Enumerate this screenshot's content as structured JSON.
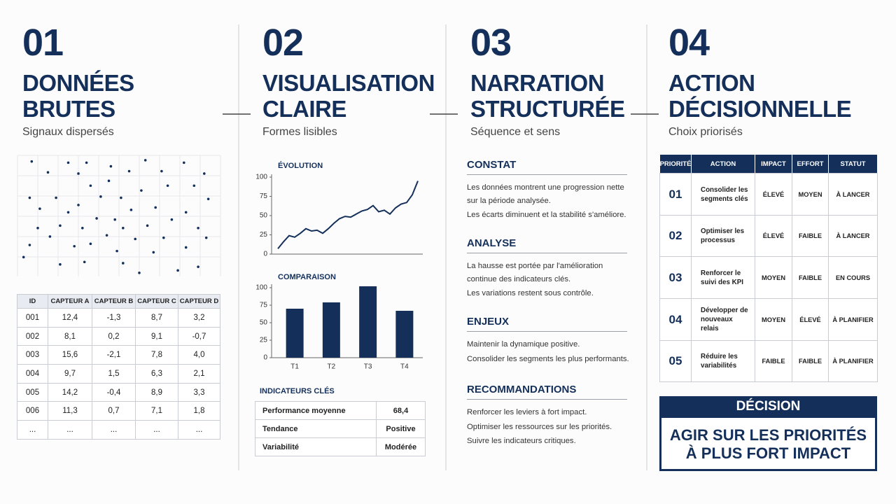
{
  "columns": [
    {
      "number": "01",
      "title": [
        "DONNÉES",
        "BRUTES"
      ],
      "subtitle": "Signaux dispersés"
    },
    {
      "number": "02",
      "title": [
        "VISUALISATION",
        "CLAIRE"
      ],
      "subtitle": "Formes lisibles"
    },
    {
      "number": "03",
      "title": [
        "NARRATION",
        "STRUCTURÉE"
      ],
      "subtitle": "Séquence et sens"
    },
    {
      "number": "04",
      "title": [
        "ACTION",
        "DÉCISIONNELLE"
      ],
      "subtitle": "Choix priorisés"
    }
  ],
  "chart_data": [
    {
      "type": "scatter",
      "color": "#14305a",
      "xlim": [
        0,
        100
      ],
      "ylim": [
        0,
        100
      ],
      "x": [
        7,
        25,
        34,
        46,
        63,
        82,
        15,
        30,
        55,
        71,
        92,
        45,
        36,
        74,
        87,
        61,
        6,
        19,
        41,
        51,
        94,
        30,
        11,
        68,
        56,
        83,
        25,
        39,
        48,
        76,
        10,
        21,
        32,
        52,
        64,
        89,
        16,
        44,
        58,
        72,
        93,
        6,
        28,
        36,
        83,
        49,
        67,
        3,
        21,
        33,
        52,
        79,
        89,
        60
      ],
      "y": [
        95,
        94,
        94,
        91,
        96,
        94,
        86,
        85,
        87,
        87,
        85,
        79,
        75,
        75,
        75,
        71,
        65,
        65,
        66,
        65,
        64,
        59,
        56,
        57,
        55,
        53,
        53,
        48,
        47,
        47,
        40,
        42,
        40,
        40,
        42,
        40,
        33,
        34,
        31,
        32,
        32,
        26,
        25,
        27,
        24,
        21,
        20,
        16,
        10,
        12,
        11,
        5,
        8,
        3
      ]
    },
    {
      "type": "line",
      "title": "ÉVOLUTION",
      "color": "#14305a",
      "categories": [
        null,
        null,
        null,
        null,
        null,
        null,
        null,
        null,
        null,
        null,
        null,
        null,
        null,
        null,
        null,
        null,
        null,
        null,
        null,
        null,
        null,
        null,
        null,
        null,
        null,
        null
      ],
      "values": [
        7,
        16,
        24,
        22,
        27,
        33,
        30,
        31,
        27,
        33,
        40,
        46,
        49,
        48,
        52,
        56,
        58,
        63,
        55,
        57,
        52,
        60,
        65,
        67,
        77,
        95
      ],
      "ylim": [
        0,
        100
      ],
      "yticks": [
        0,
        25,
        50,
        75,
        100
      ]
    },
    {
      "type": "bar",
      "title": "COMPARAISON",
      "color": "#14305a",
      "categories": [
        "T1",
        "T2",
        "T3",
        "T4"
      ],
      "values": [
        70,
        79,
        102,
        67
      ],
      "ylim": [
        0,
        105
      ],
      "yticks": [
        0,
        25,
        50,
        75,
        100
      ]
    }
  ],
  "raw_table": {
    "header": [
      "ID",
      "CAPTEUR A",
      "CAPTEUR B",
      "CAPTEUR C",
      "CAPTEUR D"
    ],
    "rows": [
      [
        "001",
        "12,4",
        "-1,3",
        "8,7",
        "3,2"
      ],
      [
        "002",
        "8,1",
        "0,2",
        "9,1",
        "-0,7"
      ],
      [
        "003",
        "15,6",
        "-2,1",
        "7,8",
        "4,0"
      ],
      [
        "004",
        "9,7",
        "1,5",
        "6,3",
        "2,1"
      ],
      [
        "005",
        "14,2",
        "-0,4",
        "8,9",
        "3,3"
      ],
      [
        "006",
        "11,3",
        "0,7",
        "7,1",
        "1,8"
      ],
      [
        "...",
        "...",
        "...",
        "...",
        "..."
      ]
    ]
  },
  "indicators": {
    "title": "INDICATEURS CLÉS",
    "rows": [
      [
        "Performance moyenne",
        "68,4"
      ],
      [
        "Tendance",
        "Positive"
      ],
      [
        "Variabilité",
        "Modérée"
      ]
    ]
  },
  "narration": [
    {
      "heading": "CONSTAT",
      "paragraphs": [
        "Les données montrent une progression nette sur la période analysée.",
        "Les écarts diminuent et la stabilité s'améliore."
      ]
    },
    {
      "heading": "ANALYSE",
      "paragraphs": [
        "La hausse est portée par l'amélioration continue des indicateurs clés.",
        "Les variations restent sous contrôle."
      ]
    },
    {
      "heading": "ENJEUX",
      "paragraphs": [
        "Maintenir la dynamique positive.",
        "Consolider les segments les plus performants."
      ]
    },
    {
      "heading": "RECOMMANDATIONS",
      "paragraphs": [
        "Renforcer les leviers à fort impact.",
        "Optimiser les ressources sur les priorités.",
        "Suivre les indicateurs critiques."
      ]
    }
  ],
  "action_table": {
    "header": [
      "PRIORITÉ",
      "ACTION",
      "IMPACT",
      "EFFORT",
      "STATUT"
    ],
    "rows": [
      [
        "01",
        "Consolider les segments clés",
        "ÉLEVÉ",
        "MOYEN",
        "À LANCER"
      ],
      [
        "02",
        "Optimiser les processus",
        "ÉLEVÉ",
        "FAIBLE",
        "À LANCER"
      ],
      [
        "03",
        "Renforcer le suivi des KPI",
        "MOYEN",
        "FAIBLE",
        "EN COURS"
      ],
      [
        "04",
        "Développer de nouveaux relais",
        "MOYEN",
        "ÉLEVÉ",
        "À PLANIFIER"
      ],
      [
        "05",
        "Réduire les variabilités",
        "FAIBLE",
        "FAIBLE",
        "À PLANIFIER"
      ]
    ]
  },
  "decision": {
    "title": "DÉCISION",
    "text": [
      "AGIR SUR LES PRIORITÉS",
      "À PLUS FORT IMPACT"
    ]
  }
}
